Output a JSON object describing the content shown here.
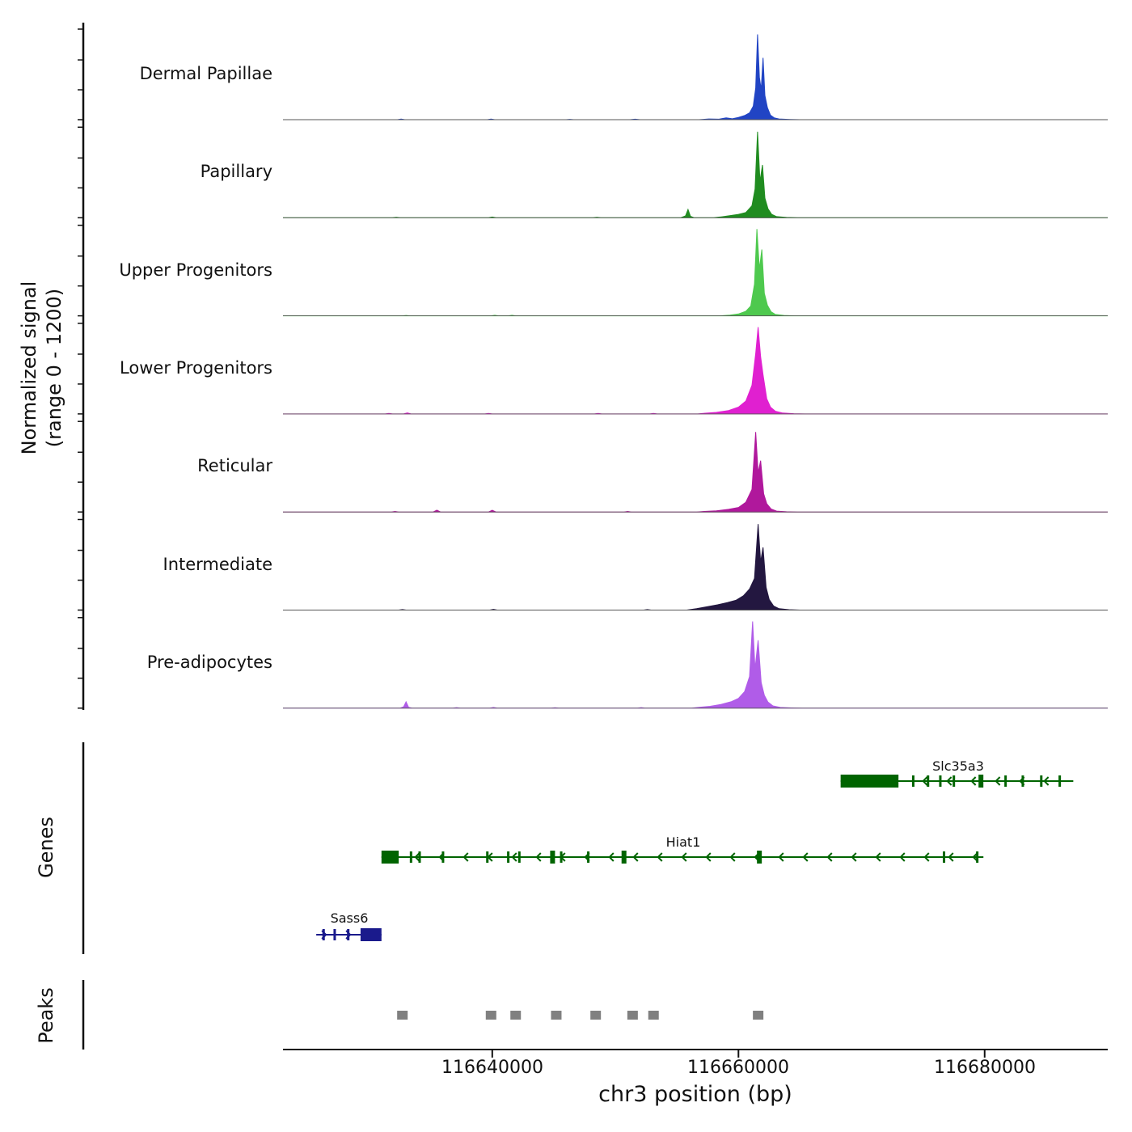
{
  "figure": {
    "y_axis_label_line1": "Normalized signal",
    "y_axis_label_line2": "(range 0 - 1200)",
    "genes_label": "Genes",
    "peaks_label": "Peaks",
    "x_axis_label": "chr3 position (bp)"
  },
  "chart_data": {
    "type": "area",
    "title": "",
    "xlabel": "chr3 position (bp)",
    "ylabel": "Normalized signal (range 0 - 1200)",
    "x_range": [
      116623000,
      116690000
    ],
    "y_range_per_track": [
      0,
      1200
    ],
    "x_ticks": [
      116640000,
      116660000,
      116680000
    ],
    "x_tick_labels": [
      "116640000",
      "116660000",
      "116680000"
    ],
    "tracks": [
      {
        "name": "Dermal Papillae",
        "color": "#2144c4",
        "points": [
          [
            116623000,
            0
          ],
          [
            116632300,
            0
          ],
          [
            116632600,
            7
          ],
          [
            116632900,
            0
          ],
          [
            116639600,
            0
          ],
          [
            116639900,
            9
          ],
          [
            116640200,
            0
          ],
          [
            116646000,
            0
          ],
          [
            116646300,
            4
          ],
          [
            116646600,
            0
          ],
          [
            116651200,
            0
          ],
          [
            116651600,
            6
          ],
          [
            116652000,
            0
          ],
          [
            116656800,
            0
          ],
          [
            116657600,
            10
          ],
          [
            116658400,
            6
          ],
          [
            116659000,
            25
          ],
          [
            116659500,
            12
          ],
          [
            116660000,
            30
          ],
          [
            116660500,
            55
          ],
          [
            116660900,
            90
          ],
          [
            116661200,
            180
          ],
          [
            116661400,
            420
          ],
          [
            116661550,
            1130
          ],
          [
            116661700,
            560
          ],
          [
            116661850,
            400
          ],
          [
            116662000,
            820
          ],
          [
            116662150,
            320
          ],
          [
            116662350,
            160
          ],
          [
            116662600,
            60
          ],
          [
            116662900,
            25
          ],
          [
            116663300,
            10
          ],
          [
            116664200,
            3
          ],
          [
            116665000,
            0
          ],
          [
            116690000,
            0
          ]
        ]
      },
      {
        "name": "Papillary",
        "color": "#208c20",
        "points": [
          [
            116623000,
            0
          ],
          [
            116631900,
            0
          ],
          [
            116632200,
            5
          ],
          [
            116632500,
            0
          ],
          [
            116639700,
            0
          ],
          [
            116640000,
            10
          ],
          [
            116640300,
            0
          ],
          [
            116648200,
            0
          ],
          [
            116648500,
            5
          ],
          [
            116648800,
            0
          ],
          [
            116655300,
            0
          ],
          [
            116655700,
            25
          ],
          [
            116655900,
            110
          ],
          [
            116656100,
            20
          ],
          [
            116656400,
            0
          ],
          [
            116658000,
            0
          ],
          [
            116658600,
            12
          ],
          [
            116659400,
            30
          ],
          [
            116660000,
            45
          ],
          [
            116660600,
            70
          ],
          [
            116661100,
            160
          ],
          [
            116661350,
            380
          ],
          [
            116661550,
            1140
          ],
          [
            116661750,
            480
          ],
          [
            116661950,
            700
          ],
          [
            116662150,
            260
          ],
          [
            116662400,
            120
          ],
          [
            116662700,
            45
          ],
          [
            116663100,
            15
          ],
          [
            116663900,
            4
          ],
          [
            116664800,
            0
          ],
          [
            116690000,
            0
          ]
        ]
      },
      {
        "name": "Upper Progenitors",
        "color": "#4ec94e",
        "points": [
          [
            116623000,
            0
          ],
          [
            116632700,
            0
          ],
          [
            116633000,
            5
          ],
          [
            116633300,
            0
          ],
          [
            116639900,
            0
          ],
          [
            116640200,
            7
          ],
          [
            116640500,
            0
          ],
          [
            116641300,
            0
          ],
          [
            116641600,
            8
          ],
          [
            116641900,
            0
          ],
          [
            116658500,
            0
          ],
          [
            116659300,
            10
          ],
          [
            116660000,
            25
          ],
          [
            116660600,
            60
          ],
          [
            116661000,
            130
          ],
          [
            116661300,
            420
          ],
          [
            116661500,
            1150
          ],
          [
            116661700,
            620
          ],
          [
            116661900,
            880
          ],
          [
            116662100,
            300
          ],
          [
            116662350,
            140
          ],
          [
            116662650,
            55
          ],
          [
            116663000,
            18
          ],
          [
            116663700,
            5
          ],
          [
            116664600,
            0
          ],
          [
            116690000,
            0
          ]
        ]
      },
      {
        "name": "Lower Progenitors",
        "color": "#e020d0",
        "points": [
          [
            116623000,
            0
          ],
          [
            116631300,
            0
          ],
          [
            116631600,
            7
          ],
          [
            116631900,
            0
          ],
          [
            116632800,
            0
          ],
          [
            116633100,
            13
          ],
          [
            116633400,
            0
          ],
          [
            116639400,
            0
          ],
          [
            116639700,
            7
          ],
          [
            116640000,
            0
          ],
          [
            116648300,
            0
          ],
          [
            116648600,
            8
          ],
          [
            116648900,
            0
          ],
          [
            116652800,
            0
          ],
          [
            116653100,
            6
          ],
          [
            116653400,
            0
          ],
          [
            116656700,
            0
          ],
          [
            116657300,
            10
          ],
          [
            116658200,
            20
          ],
          [
            116659200,
            45
          ],
          [
            116660000,
            90
          ],
          [
            116660600,
            170
          ],
          [
            116661100,
            380
          ],
          [
            116661400,
            800
          ],
          [
            116661600,
            1150
          ],
          [
            116661800,
            760
          ],
          [
            116662000,
            520
          ],
          [
            116662300,
            200
          ],
          [
            116662600,
            90
          ],
          [
            116663000,
            35
          ],
          [
            116663600,
            12
          ],
          [
            116664500,
            3
          ],
          [
            116665400,
            0
          ],
          [
            116690000,
            0
          ]
        ]
      },
      {
        "name": "Reticular",
        "color": "#b0189c",
        "points": [
          [
            116623000,
            0
          ],
          [
            116631800,
            0
          ],
          [
            116632100,
            8
          ],
          [
            116632400,
            0
          ],
          [
            116635200,
            0
          ],
          [
            116635500,
            25
          ],
          [
            116635800,
            0
          ],
          [
            116639700,
            0
          ],
          [
            116640000,
            22
          ],
          [
            116640300,
            0
          ],
          [
            116650700,
            0
          ],
          [
            116651000,
            8
          ],
          [
            116651300,
            0
          ],
          [
            116656600,
            0
          ],
          [
            116657200,
            8
          ],
          [
            116658200,
            15
          ],
          [
            116659200,
            35
          ],
          [
            116660000,
            60
          ],
          [
            116660600,
            130
          ],
          [
            116661100,
            300
          ],
          [
            116661400,
            1060
          ],
          [
            116661600,
            520
          ],
          [
            116661800,
            680
          ],
          [
            116662050,
            240
          ],
          [
            116662300,
            110
          ],
          [
            116662650,
            40
          ],
          [
            116663100,
            12
          ],
          [
            116663900,
            3
          ],
          [
            116664800,
            0
          ],
          [
            116690000,
            0
          ]
        ]
      },
      {
        "name": "Intermediate",
        "color": "#231740",
        "points": [
          [
            116623000,
            0
          ],
          [
            116632400,
            0
          ],
          [
            116632700,
            6
          ],
          [
            116633000,
            0
          ],
          [
            116639800,
            0
          ],
          [
            116640100,
            10
          ],
          [
            116640400,
            0
          ],
          [
            116652300,
            0
          ],
          [
            116652600,
            6
          ],
          [
            116652900,
            0
          ],
          [
            116655800,
            0
          ],
          [
            116656600,
            18
          ],
          [
            116657500,
            45
          ],
          [
            116658300,
            70
          ],
          [
            116659100,
            100
          ],
          [
            116659800,
            130
          ],
          [
            116660400,
            190
          ],
          [
            116660900,
            280
          ],
          [
            116661300,
            420
          ],
          [
            116661600,
            1140
          ],
          [
            116661800,
            640
          ],
          [
            116662000,
            830
          ],
          [
            116662250,
            300
          ],
          [
            116662500,
            140
          ],
          [
            116662850,
            55
          ],
          [
            116663300,
            18
          ],
          [
            116664100,
            5
          ],
          [
            116665000,
            0
          ],
          [
            116690000,
            0
          ]
        ]
      },
      {
        "name": "Pre-adipocytes",
        "color": "#b05ce8",
        "points": [
          [
            116623000,
            0
          ],
          [
            116632500,
            0
          ],
          [
            116632800,
            18
          ],
          [
            116633000,
            85
          ],
          [
            116633200,
            12
          ],
          [
            116633500,
            0
          ],
          [
            116636800,
            0
          ],
          [
            116637100,
            8
          ],
          [
            116637400,
            0
          ],
          [
            116639800,
            0
          ],
          [
            116640100,
            10
          ],
          [
            116640400,
            0
          ],
          [
            116644800,
            0
          ],
          [
            116645100,
            6
          ],
          [
            116645400,
            0
          ],
          [
            116651800,
            0
          ],
          [
            116652100,
            8
          ],
          [
            116652400,
            0
          ],
          [
            116656200,
            0
          ],
          [
            116656800,
            12
          ],
          [
            116657700,
            25
          ],
          [
            116658600,
            50
          ],
          [
            116659400,
            85
          ],
          [
            116660000,
            130
          ],
          [
            116660500,
            220
          ],
          [
            116660900,
            420
          ],
          [
            116661150,
            1150
          ],
          [
            116661350,
            520
          ],
          [
            116661600,
            900
          ],
          [
            116661850,
            340
          ],
          [
            116662100,
            170
          ],
          [
            116662400,
            80
          ],
          [
            116662800,
            30
          ],
          [
            116663400,
            10
          ],
          [
            116664300,
            3
          ],
          [
            116665200,
            0
          ],
          [
            116690000,
            0
          ]
        ]
      }
    ],
    "genes": [
      {
        "name": "Slc35a3",
        "color": "#006400",
        "strand": "-",
        "start": 116668300,
        "end": 116687200,
        "thick_start": 116668300,
        "thick_end": 116673000,
        "exons": [
          116674200,
          116675400,
          116676400,
          116677500,
          116679700,
          116681700,
          116683100,
          116684600,
          116686100
        ],
        "big_exons": [
          116679700
        ]
      },
      {
        "name": "Hiat1",
        "color": "#006400",
        "strand": "-",
        "start": 116631000,
        "end": 116679900,
        "thick_start": 116631000,
        "thick_end": 116632400,
        "exons": [
          116633400,
          116634100,
          116636000,
          116639600,
          116641300,
          116642200,
          116644900,
          116645600,
          116647800,
          116650700,
          116661700,
          116676700,
          116679400
        ],
        "big_exons": [
          116644900,
          116650700,
          116661700
        ]
      },
      {
        "name": "Sass6",
        "color": "#1a1a8c",
        "strand": "+",
        "start": 116625700,
        "end": 116631000,
        "thick_start": 116629300,
        "thick_end": 116631000,
        "exons": [
          116626300,
          116627200,
          116628300
        ],
        "big_exons": []
      }
    ],
    "peaks": {
      "color": "#808080",
      "positions": [
        116632700,
        116639900,
        116641900,
        116645200,
        116648400,
        116651400,
        116653100,
        116661600
      ],
      "width_bp": 900
    }
  }
}
